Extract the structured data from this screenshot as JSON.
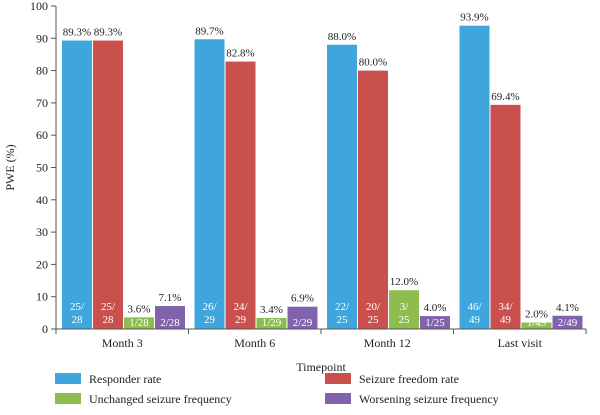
{
  "chart_data": {
    "type": "bar",
    "title": "",
    "xlabel": "Timepoint",
    "ylabel": "PWE (%)",
    "ylim": [
      0,
      100
    ],
    "yticks": [
      0,
      10,
      20,
      30,
      40,
      50,
      60,
      70,
      80,
      90,
      100
    ],
    "categories": [
      "Month 3",
      "Month 6",
      "Month 12",
      "Last visit"
    ],
    "legend_position": "bottom",
    "grid": false,
    "series": [
      {
        "name": "Responder rate",
        "color": "#3ea6dc",
        "values": [
          89.3,
          89.7,
          88.0,
          93.9
        ],
        "labels": [
          "89.3%",
          "89.7%",
          "88.0%",
          "93.9%"
        ],
        "counts": [
          [
            "25/",
            "28"
          ],
          [
            "26/",
            "29"
          ],
          [
            "22/",
            "25"
          ],
          [
            "46/",
            "49"
          ]
        ]
      },
      {
        "name": "Seizure freedom rate",
        "color": "#c9504d",
        "values": [
          89.3,
          82.8,
          80.0,
          69.4
        ],
        "labels": [
          "89.3%",
          "82.8%",
          "80.0%",
          "69.4%"
        ],
        "counts": [
          [
            "25/",
            "28"
          ],
          [
            "24/",
            "29"
          ],
          [
            "20/",
            "25"
          ],
          [
            "34/",
            "49"
          ]
        ]
      },
      {
        "name": "Unchanged seizure frequency",
        "color": "#8ebc4e",
        "values": [
          3.6,
          3.4,
          12.0,
          2.0
        ],
        "labels": [
          "3.6%",
          "3.4%",
          "12.0%",
          "2.0%"
        ],
        "counts": [
          [
            "1/28"
          ],
          [
            "1/29"
          ],
          [
            "3/",
            "25"
          ],
          [
            "1/49"
          ]
        ]
      },
      {
        "name": "Worsening seizure frequency",
        "color": "#8063ac",
        "values": [
          7.1,
          6.9,
          4.0,
          4.1
        ],
        "labels": [
          "7.1%",
          "6.9%",
          "4.0%",
          "4.1%"
        ],
        "counts": [
          [
            "2/28"
          ],
          [
            "2/29"
          ],
          [
            "1/25"
          ],
          [
            "2/49"
          ]
        ]
      }
    ]
  }
}
